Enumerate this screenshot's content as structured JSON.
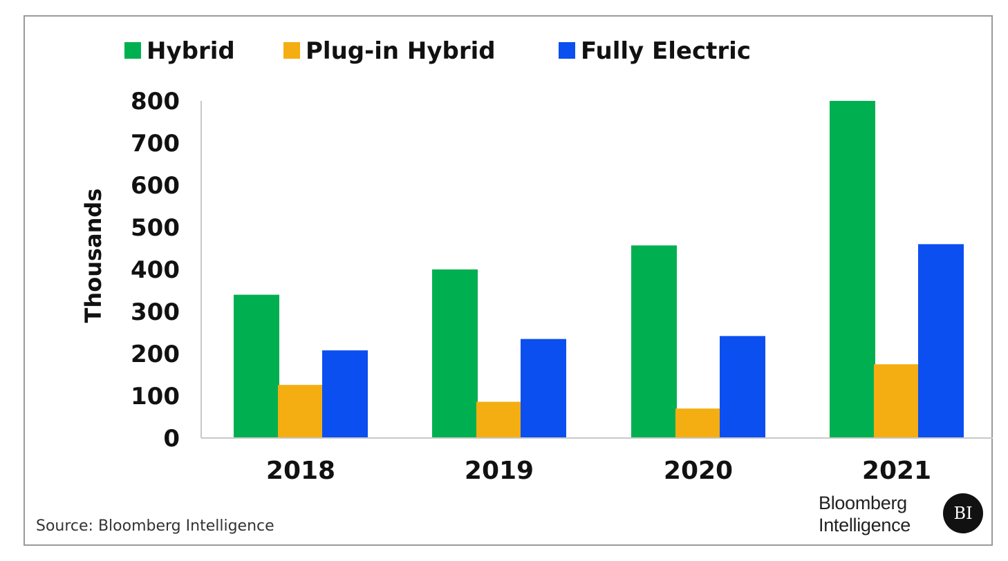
{
  "chart_data": {
    "type": "bar",
    "categories": [
      "2018",
      "2019",
      "2020",
      "2021"
    ],
    "series": [
      {
        "name": "Hybrid",
        "color": "#00b050",
        "values": [
          340,
          400,
          457,
          800
        ]
      },
      {
        "name": "Plug-in Hybrid",
        "color": "#f5ae11",
        "values": [
          126,
          86,
          70,
          175
        ]
      },
      {
        "name": "Fully Electric",
        "color": "#0b4ff0",
        "values": [
          208,
          235,
          242,
          460
        ]
      }
    ],
    "ylabel": "Thousands",
    "xlabel": "",
    "ylim": [
      0,
      800
    ],
    "yticks": [
      "0",
      "100",
      "200",
      "300",
      "400",
      "500",
      "600",
      "700",
      "800"
    ],
    "grid": false,
    "legend_position": "top-left"
  },
  "footer": {
    "source": "Source: Bloomberg Intelligence",
    "logo_line1": "Bloomberg",
    "logo_line2": "Intelligence",
    "logo_badge": "BI"
  }
}
